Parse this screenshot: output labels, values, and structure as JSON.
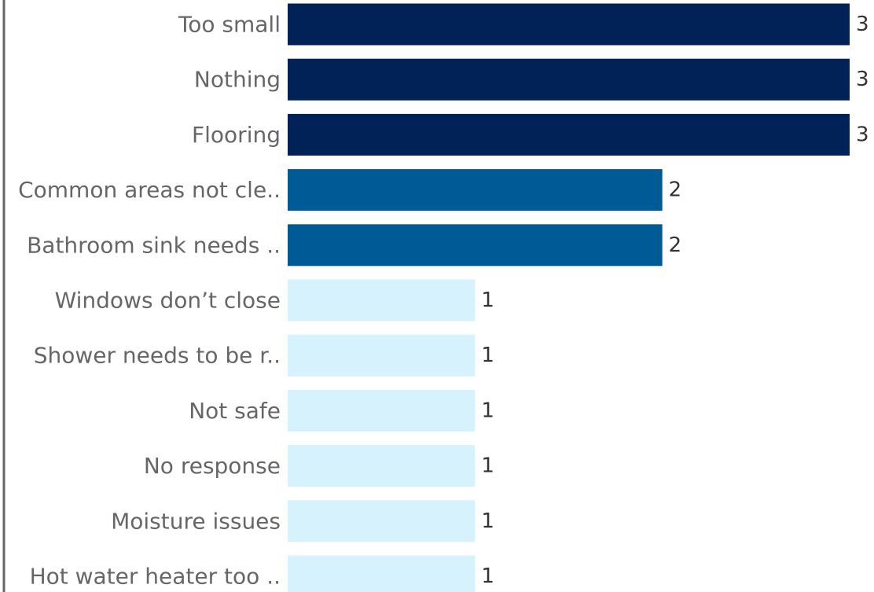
{
  "chart_data": {
    "type": "bar",
    "orientation": "horizontal",
    "title": "",
    "xlabel": "",
    "ylabel": "",
    "categories": [
      "Too small",
      "Nothing",
      "Flooring",
      "Common areas not cle..",
      "Bathroom sink needs ..",
      "Windows don’t close",
      "Shower needs to be r..",
      "Not safe",
      "No response",
      "Moisture issues",
      "Hot water heater too .."
    ],
    "values": [
      3,
      3,
      3,
      2,
      2,
      1,
      1,
      1,
      1,
      1,
      1
    ],
    "value_labels": [
      "3",
      "3",
      "3",
      "2",
      "2",
      "1",
      "1",
      "1",
      "1",
      "1",
      "1"
    ],
    "xlim": [
      0,
      3
    ],
    "grid": false,
    "legend": "none",
    "colors_by_value": {
      "3": "#012257",
      "2": "#005a96",
      "1": "#d6f2fc"
    },
    "axis_color": "#666666"
  }
}
